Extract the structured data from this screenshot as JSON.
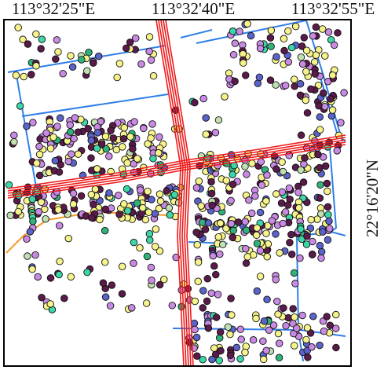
{
  "map": {
    "top_labels": [
      "113°32'25\"E",
      "113°32'40\"E",
      "113°32'55\"E"
    ],
    "side_label": "22°16'20\"N",
    "colors": {
      "main_road": "#ee1c1c",
      "secondary_road": "#2f7fe8",
      "path": "#f39a2c",
      "frame": "#000000",
      "poi_palette": [
        "#f6f38a",
        "#c98ae3",
        "#5a1a4a",
        "#5a63c9",
        "#3dd6a8",
        "#2fb37a",
        "#bfe0b0"
      ]
    },
    "layers": [
      "buildings-poi-points",
      "main-roads",
      "secondary-roads",
      "footpath"
    ]
  }
}
